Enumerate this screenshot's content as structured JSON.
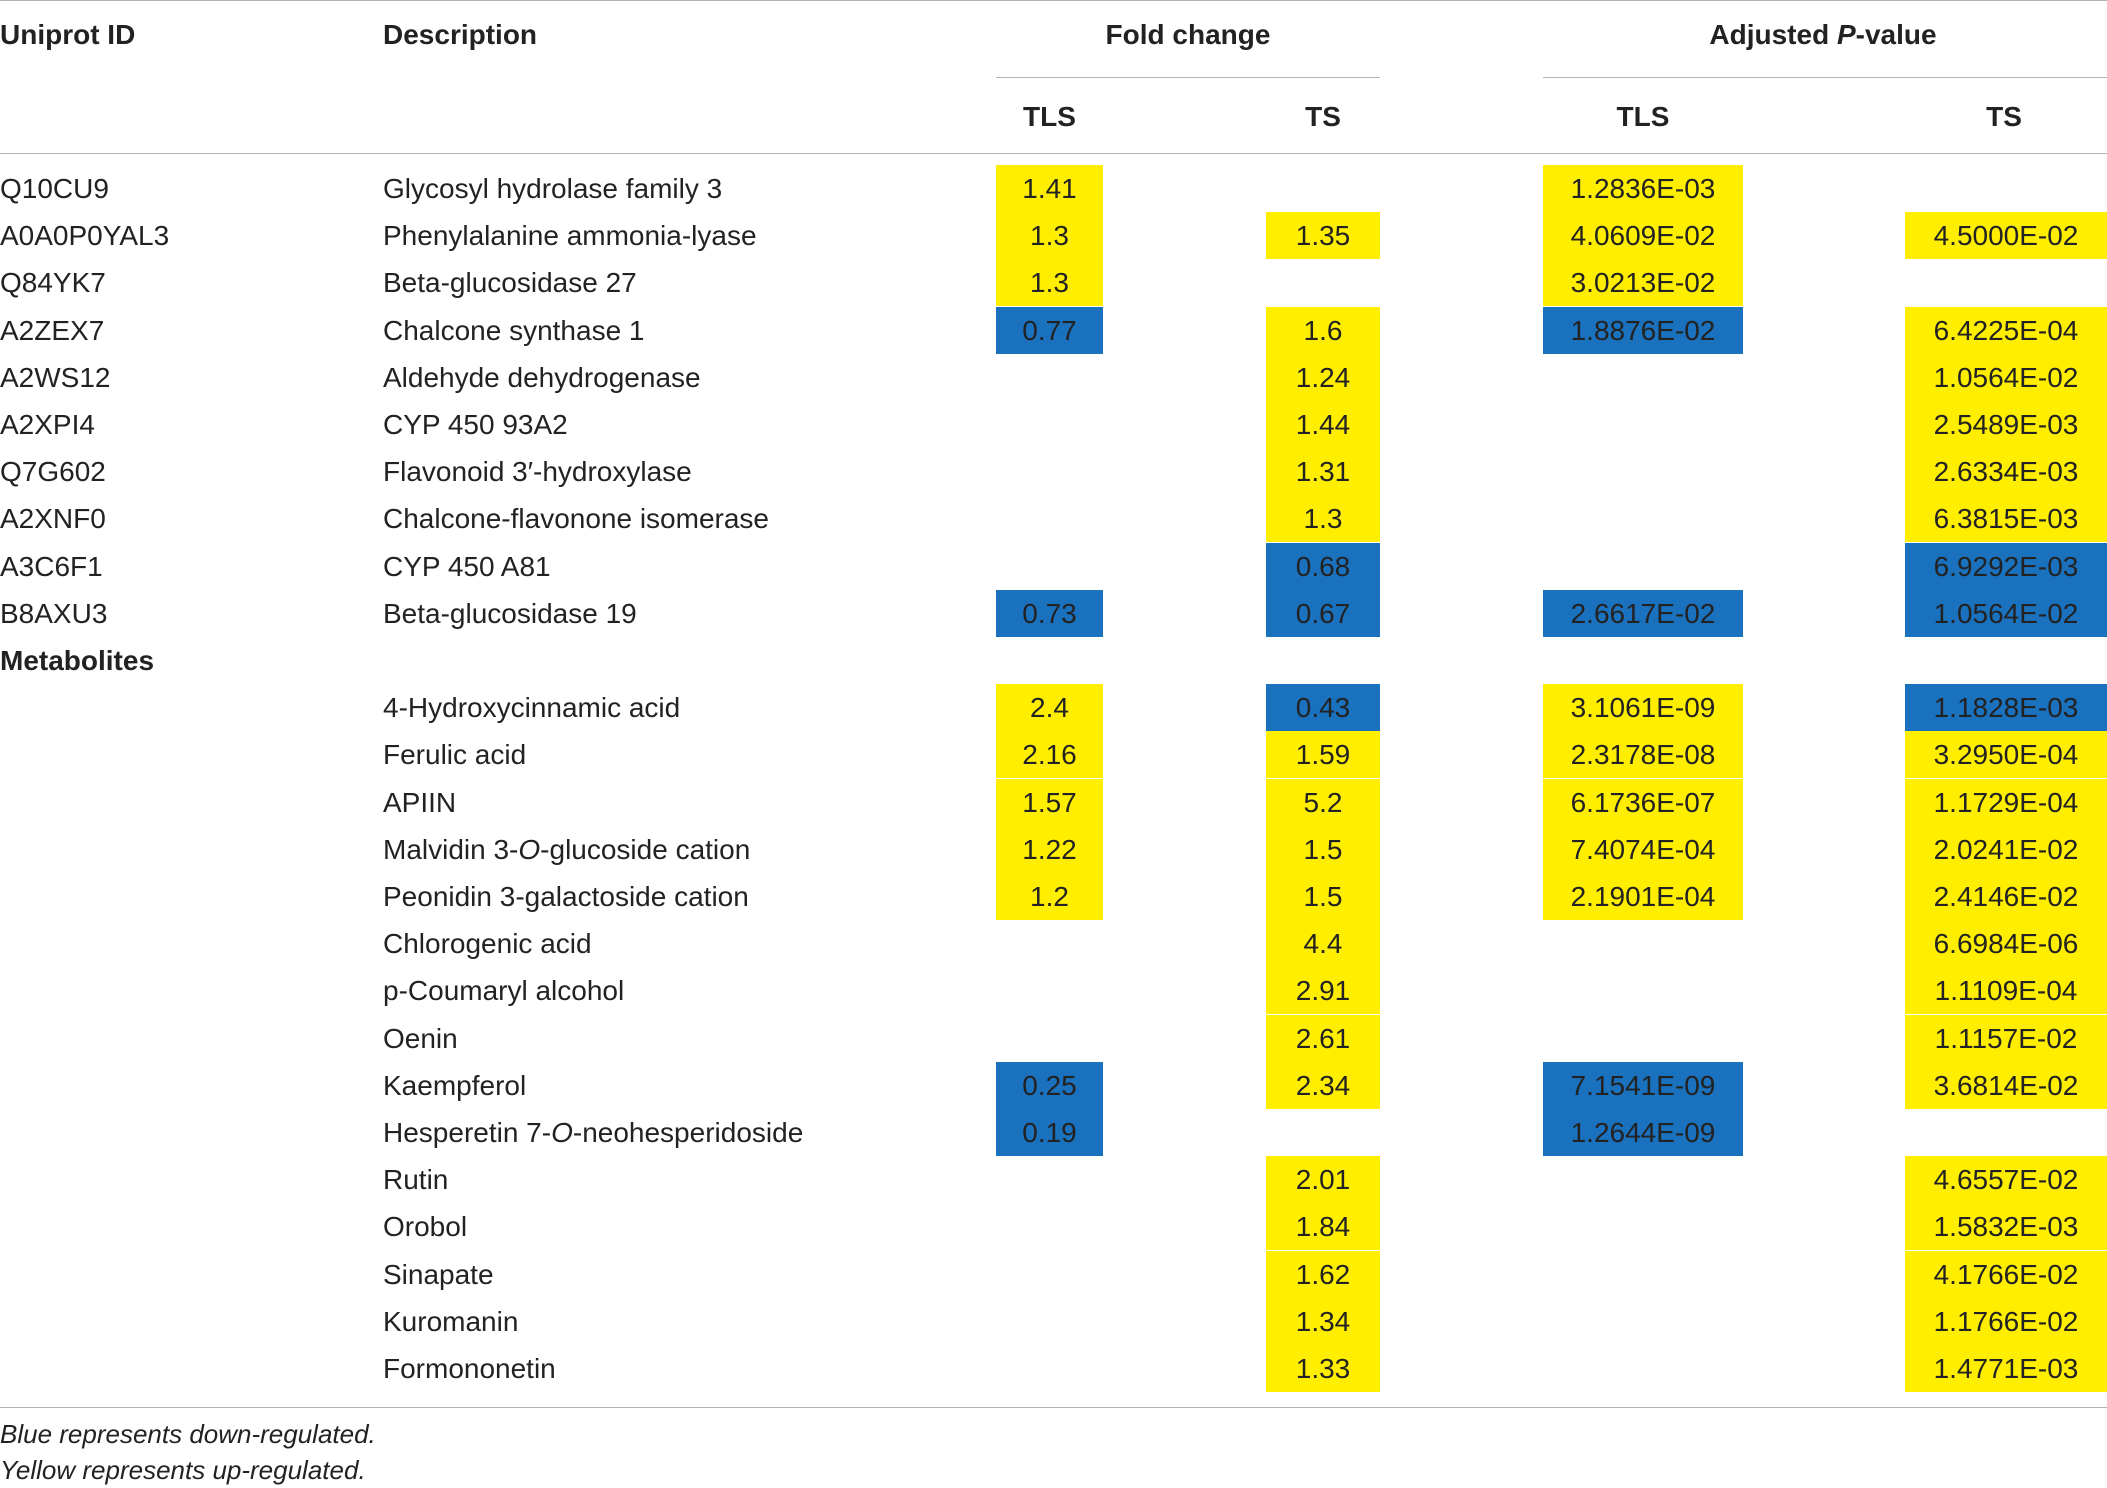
{
  "headers": {
    "uniprot_id": "Uniprot ID",
    "description": "Description",
    "fold_change": "Fold change",
    "adjusted_pre": "Adjusted ",
    "adjusted_p": "P",
    "adjusted_post": "-value",
    "tls": "TLS",
    "ts": "TS"
  },
  "colors": {
    "up": "#ffee00",
    "down": "#1a71be"
  },
  "proteins": [
    {
      "id": "Q10CU9",
      "desc": [
        "Glycosyl hydrolase family 3"
      ],
      "fc_tls": {
        "v": "1.41",
        "c": "up"
      },
      "fc_ts": null,
      "p_tls": {
        "v": "1.2836E-03",
        "c": "up"
      },
      "p_ts": null
    },
    {
      "id": "A0A0P0YAL3",
      "desc": [
        "Phenylalanine ammonia-lyase"
      ],
      "fc_tls": {
        "v": "1.3",
        "c": "up"
      },
      "fc_ts": {
        "v": "1.35",
        "c": "up"
      },
      "p_tls": {
        "v": "4.0609E-02",
        "c": "up"
      },
      "p_ts": {
        "v": "4.5000E-02",
        "c": "up"
      }
    },
    {
      "id": "Q84YK7",
      "desc": [
        "Beta-glucosidase 27"
      ],
      "fc_tls": {
        "v": "1.3",
        "c": "up"
      },
      "fc_ts": null,
      "p_tls": {
        "v": "3.0213E-02",
        "c": "up"
      },
      "p_ts": null
    },
    {
      "id": "A2ZEX7",
      "desc": [
        "Chalcone synthase 1"
      ],
      "fc_tls": {
        "v": "0.77",
        "c": "down"
      },
      "fc_ts": {
        "v": "1.6",
        "c": "up"
      },
      "p_tls": {
        "v": "1.8876E-02",
        "c": "down"
      },
      "p_ts": {
        "v": "6.4225E-04",
        "c": "up"
      }
    },
    {
      "id": "A2WS12",
      "desc": [
        "Aldehyde dehydrogenase"
      ],
      "fc_tls": null,
      "fc_ts": {
        "v": "1.24",
        "c": "up"
      },
      "p_tls": null,
      "p_ts": {
        "v": "1.0564E-02",
        "c": "up"
      }
    },
    {
      "id": "A2XPI4",
      "desc": [
        "CYP 450 93A2"
      ],
      "fc_tls": null,
      "fc_ts": {
        "v": "1.44",
        "c": "up"
      },
      "p_tls": null,
      "p_ts": {
        "v": "2.5489E-03",
        "c": "up"
      }
    },
    {
      "id": "Q7G602",
      "desc": [
        "Flavonoid 3′-hydroxylase"
      ],
      "fc_tls": null,
      "fc_ts": {
        "v": "1.31",
        "c": "up"
      },
      "p_tls": null,
      "p_ts": {
        "v": "2.6334E-03",
        "c": "up"
      }
    },
    {
      "id": "A2XNF0",
      "desc": [
        "Chalcone-flavonone isomerase"
      ],
      "fc_tls": null,
      "fc_ts": {
        "v": "1.3",
        "c": "up"
      },
      "p_tls": null,
      "p_ts": {
        "v": "6.3815E-03",
        "c": "up"
      }
    },
    {
      "id": "A3C6F1",
      "desc": [
        "CYP 450 A81"
      ],
      "fc_tls": null,
      "fc_ts": {
        "v": "0.68",
        "c": "down"
      },
      "p_tls": null,
      "p_ts": {
        "v": "6.9292E-03",
        "c": "down"
      }
    },
    {
      "id": "B8AXU3",
      "desc": [
        "Beta-glucosidase 19"
      ],
      "fc_tls": {
        "v": "0.73",
        "c": "down"
      },
      "fc_ts": {
        "v": "0.67",
        "c": "down"
      },
      "p_tls": {
        "v": "2.6617E-02",
        "c": "down"
      },
      "p_ts": {
        "v": "1.0564E-02",
        "c": "down"
      }
    }
  ],
  "metabolites_label": "Metabolites",
  "metabolites": [
    {
      "desc": [
        "4-Hydroxycinnamic acid"
      ],
      "fc_tls": {
        "v": "2.4",
        "c": "up"
      },
      "fc_ts": {
        "v": "0.43",
        "c": "down"
      },
      "p_tls": {
        "v": "3.1061E-09",
        "c": "up"
      },
      "p_ts": {
        "v": "1.1828E-03",
        "c": "down"
      }
    },
    {
      "desc": [
        "Ferulic acid"
      ],
      "fc_tls": {
        "v": "2.16",
        "c": "up"
      },
      "fc_ts": {
        "v": "1.59",
        "c": "up"
      },
      "p_tls": {
        "v": "2.3178E-08",
        "c": "up"
      },
      "p_ts": {
        "v": "3.2950E-04",
        "c": "up"
      }
    },
    {
      "desc": [
        "APIIN"
      ],
      "fc_tls": {
        "v": "1.57",
        "c": "up"
      },
      "fc_ts": {
        "v": "5.2",
        "c": "up"
      },
      "p_tls": {
        "v": "6.1736E-07",
        "c": "up"
      },
      "p_ts": {
        "v": "1.1729E-04",
        "c": "up"
      }
    },
    {
      "desc": [
        "Malvidin 3-",
        "O",
        "-glucoside cation"
      ],
      "fc_tls": {
        "v": "1.22",
        "c": "up"
      },
      "fc_ts": {
        "v": "1.5",
        "c": "up"
      },
      "p_tls": {
        "v": "7.4074E-04",
        "c": "up"
      },
      "p_ts": {
        "v": "2.0241E-02",
        "c": "up"
      }
    },
    {
      "desc": [
        "Peonidin 3-galactoside cation"
      ],
      "fc_tls": {
        "v": "1.2",
        "c": "up"
      },
      "fc_ts": {
        "v": "1.5",
        "c": "up"
      },
      "p_tls": {
        "v": "2.1901E-04",
        "c": "up"
      },
      "p_ts": {
        "v": "2.4146E-02",
        "c": "up"
      }
    },
    {
      "desc": [
        "Chlorogenic acid"
      ],
      "fc_tls": null,
      "fc_ts": {
        "v": "4.4",
        "c": "up"
      },
      "p_tls": null,
      "p_ts": {
        "v": "6.6984E-06",
        "c": "up"
      }
    },
    {
      "desc": [
        "p-Coumaryl alcohol"
      ],
      "fc_tls": null,
      "fc_ts": {
        "v": "2.91",
        "c": "up"
      },
      "p_tls": null,
      "p_ts": {
        "v": "1.1109E-04",
        "c": "up"
      }
    },
    {
      "desc": [
        "Oenin"
      ],
      "fc_tls": null,
      "fc_ts": {
        "v": "2.61",
        "c": "up"
      },
      "p_tls": null,
      "p_ts": {
        "v": "1.1157E-02",
        "c": "up"
      }
    },
    {
      "desc": [
        "Kaempferol"
      ],
      "fc_tls": {
        "v": "0.25",
        "c": "down"
      },
      "fc_ts": {
        "v": "2.34",
        "c": "up"
      },
      "p_tls": {
        "v": "7.1541E-09",
        "c": "down"
      },
      "p_ts": {
        "v": "3.6814E-02",
        "c": "up"
      }
    },
    {
      "desc": [
        "Hesperetin 7-",
        "O",
        "-neohesperidoside"
      ],
      "fc_tls": {
        "v": "0.19",
        "c": "down"
      },
      "fc_ts": null,
      "p_tls": {
        "v": "1.2644E-09",
        "c": "down"
      },
      "p_ts": null
    },
    {
      "desc": [
        "Rutin"
      ],
      "fc_tls": null,
      "fc_ts": {
        "v": "2.01",
        "c": "up"
      },
      "p_tls": null,
      "p_ts": {
        "v": "4.6557E-02",
        "c": "up"
      }
    },
    {
      "desc": [
        "Orobol"
      ],
      "fc_tls": null,
      "fc_ts": {
        "v": "1.84",
        "c": "up"
      },
      "p_tls": null,
      "p_ts": {
        "v": "1.5832E-03",
        "c": "up"
      }
    },
    {
      "desc": [
        "Sinapate"
      ],
      "fc_tls": null,
      "fc_ts": {
        "v": "1.62",
        "c": "up"
      },
      "p_tls": null,
      "p_ts": {
        "v": "4.1766E-02",
        "c": "up"
      }
    },
    {
      "desc": [
        "Kuromanin"
      ],
      "fc_tls": null,
      "fc_ts": {
        "v": "1.34",
        "c": "up"
      },
      "p_tls": null,
      "p_ts": {
        "v": "1.1766E-02",
        "c": "up"
      }
    },
    {
      "desc": [
        "Formononetin"
      ],
      "fc_tls": null,
      "fc_ts": {
        "v": "1.33",
        "c": "up"
      },
      "p_tls": null,
      "p_ts": {
        "v": "1.4771E-03",
        "c": "up"
      }
    }
  ],
  "footnotes": [
    "Blue represents down-regulated.",
    "Yellow represents up-regulated."
  ]
}
